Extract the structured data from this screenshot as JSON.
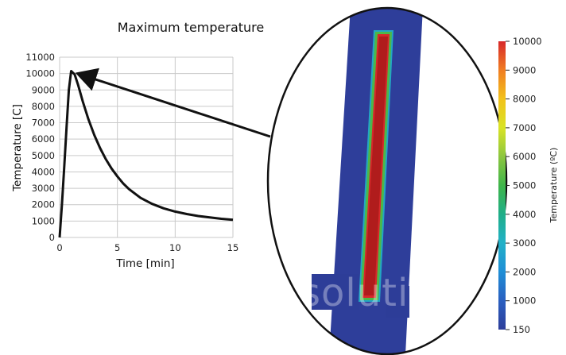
{
  "chart_data": {
    "type": "line",
    "title": "Maximum temperature",
    "xlabel": "Time [min]",
    "ylabel": "Temperature [C]",
    "xlim": [
      0,
      15
    ],
    "ylim": [
      0,
      11000
    ],
    "grid": true,
    "x_ticks": [
      "0",
      "5",
      "10",
      "15"
    ],
    "y_ticks": [
      "0",
      "1000",
      "2000",
      "3000",
      "4000",
      "5000",
      "6000",
      "7000",
      "8000",
      "9000",
      "10000",
      "11000"
    ],
    "series": [
      {
        "x": [
          0,
          0.2,
          0.4,
          0.6,
          0.8,
          1.0,
          1.3,
          1.6,
          2.0,
          2.5,
          3.0,
          3.5,
          4.0,
          4.5,
          5.0,
          5.5,
          6.0,
          7.0,
          8.0,
          9.0,
          10.0,
          11.0,
          12.0,
          13.0,
          14.0,
          15.0
        ],
        "y": [
          0,
          2000,
          4300,
          6700,
          9000,
          10150,
          9950,
          9300,
          8300,
          7200,
          6250,
          5450,
          4780,
          4200,
          3720,
          3300,
          2950,
          2420,
          2050,
          1780,
          1580,
          1430,
          1310,
          1220,
          1140,
          1080
        ]
      }
    ],
    "annotations": [
      {
        "type": "arrow",
        "from": "contour-image",
        "to": {
          "x": 1.0,
          "y": 10150
        }
      }
    ]
  },
  "colorbar": {
    "label": "Temperature (ºC)",
    "ticks": [
      "10000",
      "9000",
      "8000",
      "7000",
      "6000",
      "5000",
      "4000",
      "3000",
      "2000",
      "1000",
      "150"
    ],
    "colors": [
      "#d7282a",
      "#f07d22",
      "#f2c21b",
      "#d9e326",
      "#8cc63f",
      "#3fb54a",
      "#1fae88",
      "#22b1c8",
      "#1f8ed6",
      "#2a5fc0",
      "#2e3e9a"
    ]
  },
  "watermark": "solutions",
  "colors": {
    "curve": "#111111",
    "grid": "#c9c9c9",
    "part": "#2e3e9a",
    "hot_core": "#b01c1c",
    "hot_edge": "#4cb848"
  }
}
